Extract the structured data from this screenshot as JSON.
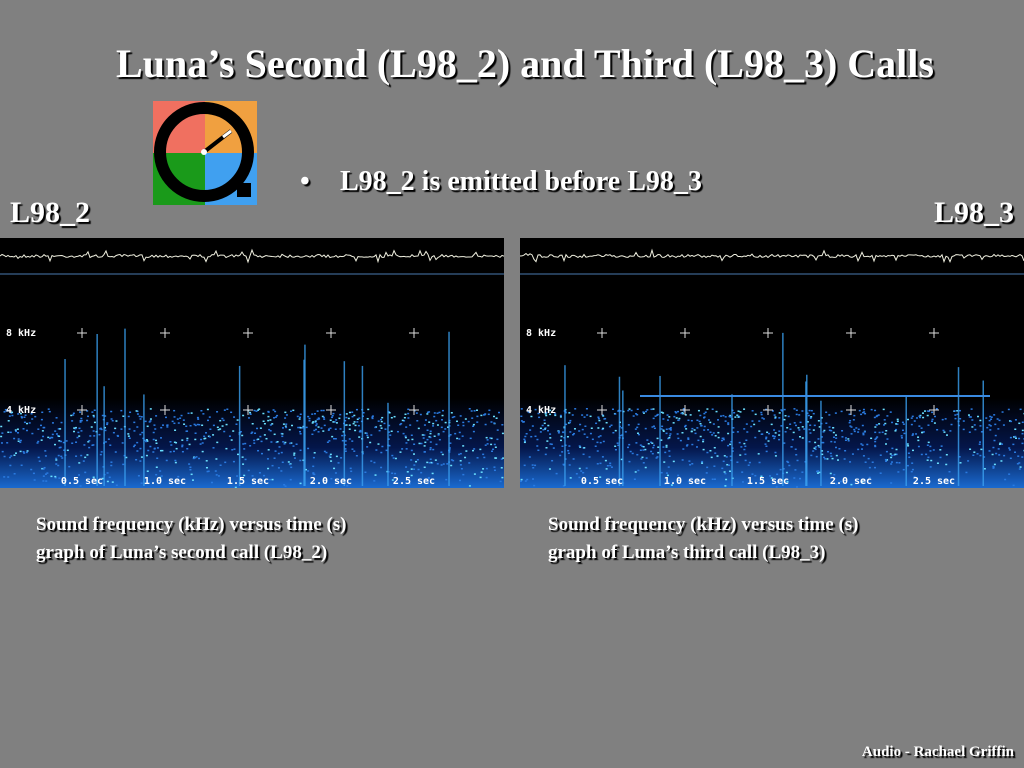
{
  "title": "Luna’s Second (L98_2) and Third (L98_3) Calls",
  "bullets": [
    "L98_2 is emitted before L98_3"
  ],
  "panels": [
    {
      "label": "L98_2",
      "y_labels": [
        "8 kHz",
        "4 kHz"
      ],
      "x_labels": [
        "0.5 sec",
        "1.0 sec",
        "1.5 sec",
        "2.0 sec",
        "2.5 sec"
      ],
      "caption": [
        "Sound frequency (kHz) versus time (s)",
        "graph of Luna’s second call (L98_2)"
      ]
    },
    {
      "label": "L98_3",
      "y_labels": [
        "8 kHz",
        "4 kHz"
      ],
      "x_labels": [
        "0.5 sec",
        "1.0 sec",
        "1.5 sec",
        "2.0 sec",
        "2.5 sec"
      ],
      "caption": [
        "Sound frequency (kHz) versus time (s)",
        "graph of Luna’s third call (L98_3)"
      ]
    }
  ],
  "footer": "Audio - Rachael Griffin"
}
